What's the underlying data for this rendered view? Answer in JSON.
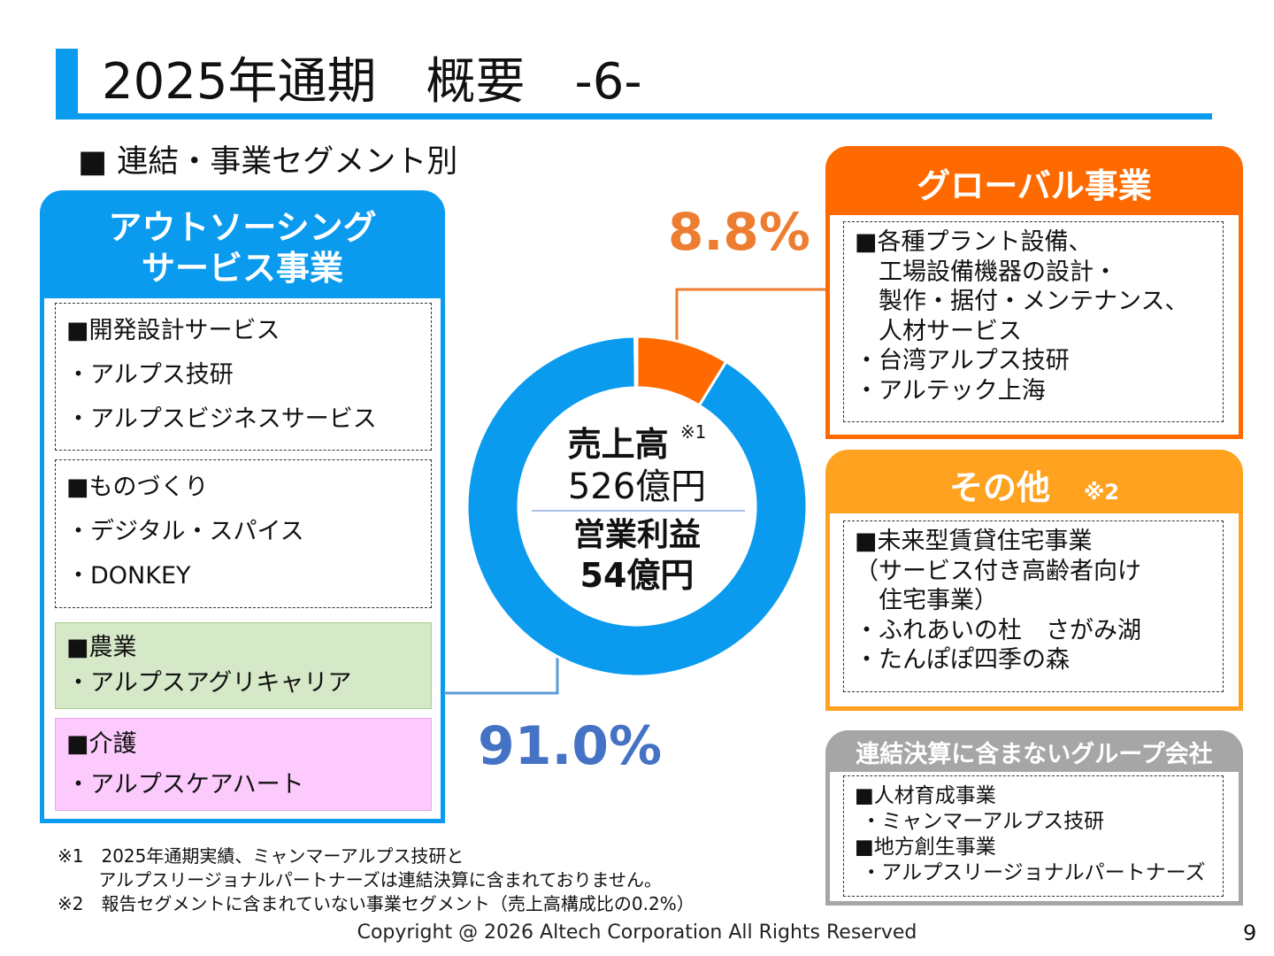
{
  "title": "2025年通期　概要　-6-",
  "subtitle": "■ 連結・事業セグメント別",
  "outsourcing": {
    "header": [
      "アウトソーシング",
      "サービス事業"
    ],
    "boxes": [
      {
        "lines": [
          "■開発設計サービス",
          "・アルプス技研",
          "・アルプスビジネスサービス"
        ]
      },
      {
        "lines": [
          "■ものづくり",
          "・デジタル・スパイス",
          "・DONKEY"
        ]
      },
      {
        "lines": [
          "■農業",
          "・アルプスアグリキャリア"
        ]
      },
      {
        "lines": [
          "■介護",
          "・アルプスケアハート"
        ]
      }
    ]
  },
  "global": {
    "header": "グローバル事業",
    "body": "■各種プラント設備、\n　工場設備機器の設計・\n　製作・据付・メンテナンス、\n　人材サービス\n・台湾アルプス技研\n・アルテック上海"
  },
  "other": {
    "header": "その他",
    "note": "※2",
    "body": "■未来型賃貸住宅事業\n（サービス付き高齢者向け\n　住宅事業）\n・ふれあいの杜　さがみ湖\n・たんぽぽ四季の森"
  },
  "excluded": {
    "header": "連結決算に含まないグループ会社",
    "body": "■人材育成事業\n ・ミャンマーアルプス技研\n■地方創生事業\n ・アルプスリージョナルパートナーズ"
  },
  "center": {
    "sales_label": "売上高",
    "sales_note": "※1",
    "sales_value": "526億円",
    "profit_label": "営業利益",
    "profit_value": "54億円"
  },
  "chart_data": {
    "type": "pie",
    "variant": "donut",
    "categories": [
      "グローバル事業",
      "アウトソーシングサービス事業",
      "その他"
    ],
    "values": [
      8.8,
      91.0,
      0.2
    ],
    "labels": [
      "8.8%",
      "91.0%"
    ],
    "colors": [
      "#ff6a00",
      "#0a9bef",
      "#0a9bef"
    ]
  },
  "footnotes": "※1　2025年通期実績、ミャンマーアルプス技研と\n　　 アルプスリージョナルパートナーズは連結決算に含まれておりません。\n※2　報告セグメントに含まれていない事業セグメント（売上高構成比の0.2%）",
  "copyright": "Copyright @ 2026  Altech Corporation All Rights Reserved",
  "page": "9"
}
